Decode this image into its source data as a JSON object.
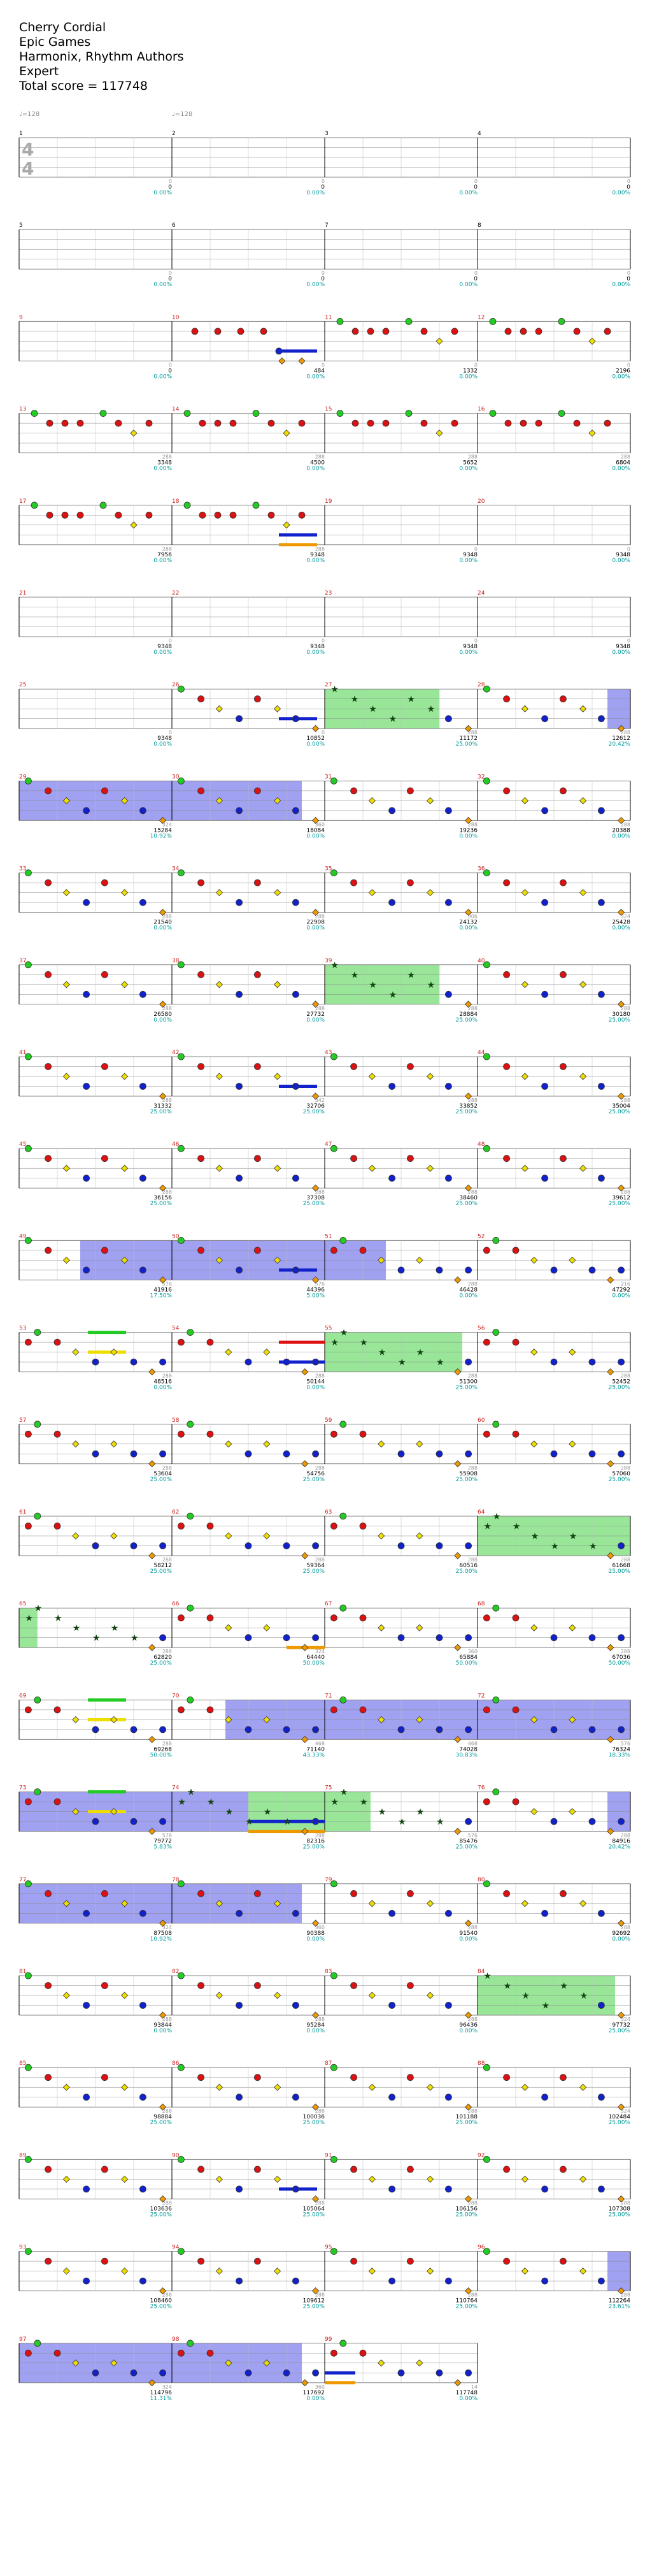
{
  "header": {
    "title": "Cherry Cordial",
    "artist": "Epic Games",
    "author": "Harmonix, Rhythm Authors",
    "difficulty": "Expert",
    "total_score_label": "Total score = 117748"
  },
  "time_signature": {
    "numerator": "4",
    "denominator": "4"
  },
  "tempo_markers": [
    {
      "measure": 1,
      "label": "♩=128"
    },
    {
      "measure": 2,
      "label": "♩=128"
    }
  ],
  "colors": {
    "green": "#22cc22",
    "red": "#dd1111",
    "yellow": "#eedd00",
    "blue": "#1122cc",
    "orange": "#ee9900",
    "overdrive": "#7fe07f",
    "solo": "#8a8aee",
    "measure_number": "#cc2222",
    "score": "#000000",
    "percent": "#009999",
    "streak": "#999999"
  },
  "chart_data": {
    "type": "table",
    "columns": [
      "measure",
      "score",
      "percent",
      "streak"
    ],
    "measures": [
      {
        "measure": 1,
        "score": "0",
        "percent": "0.00%",
        "streak": "0"
      },
      {
        "measure": 2,
        "score": "0",
        "percent": "0.00%",
        "streak": "0"
      },
      {
        "measure": 3,
        "score": "0",
        "percent": "0.00%",
        "streak": "0"
      },
      {
        "measure": 4,
        "score": "0",
        "percent": "0.00%",
        "streak": "0"
      },
      {
        "measure": 5,
        "score": "0",
        "percent": "0.00%",
        "streak": "0"
      },
      {
        "measure": 6,
        "score": "0",
        "percent": "0.00%",
        "streak": "0"
      },
      {
        "measure": 7,
        "score": "0",
        "percent": "0.00%",
        "streak": "0"
      },
      {
        "measure": 8,
        "score": "0",
        "percent": "0.00%",
        "streak": "0"
      },
      {
        "measure": 9,
        "score": "0",
        "percent": "0.00%",
        "streak": "0"
      },
      {
        "measure": 10,
        "score": "484",
        "percent": "0.00%",
        "streak": "0"
      },
      {
        "measure": 11,
        "score": "1332",
        "percent": "0.00%",
        "streak": "0"
      },
      {
        "measure": 12,
        "score": "2196",
        "percent": "0.00%",
        "streak": "0"
      },
      {
        "measure": 13,
        "score": "3348",
        "percent": "0.00%",
        "streak": "288"
      },
      {
        "measure": 14,
        "score": "4500",
        "percent": "0.00%",
        "streak": "288"
      },
      {
        "measure": 15,
        "score": "5652",
        "percent": "0.00%",
        "streak": "288"
      },
      {
        "measure": 16,
        "score": "6804",
        "percent": "0.00%",
        "streak": "288"
      },
      {
        "measure": 17,
        "score": "7956",
        "percent": "0.00%",
        "streak": "288"
      },
      {
        "measure": 18,
        "score": "9348",
        "percent": "0.00%",
        "streak": "288"
      },
      {
        "measure": 19,
        "score": "9348",
        "percent": "0.00%",
        "streak": "0"
      },
      {
        "measure": 20,
        "score": "9348",
        "percent": "0.00%",
        "streak": "0"
      },
      {
        "measure": 21,
        "score": "9348",
        "percent": "0.00%",
        "streak": "0"
      },
      {
        "measure": 22,
        "score": "9348",
        "percent": "0.00%",
        "streak": "0"
      },
      {
        "measure": 23,
        "score": "9348",
        "percent": "0.00%",
        "streak": "0"
      },
      {
        "measure": 24,
        "score": "9348",
        "percent": "0.00%",
        "streak": "0"
      },
      {
        "measure": 25,
        "score": "9348",
        "percent": "0.00%",
        "streak": "0"
      },
      {
        "measure": 26,
        "score": "10852",
        "percent": "0.00%",
        "streak": "0"
      },
      {
        "measure": 27,
        "score": "11172",
        "percent": "25.00%",
        "streak": "288"
      },
      {
        "measure": 28,
        "score": "12612",
        "percent": "20.42%",
        "streak": "288"
      },
      {
        "measure": 29,
        "score": "15284",
        "percent": "10.92%",
        "streak": "324"
      },
      {
        "measure": 30,
        "score": "18084",
        "percent": "0.00%",
        "streak": "360"
      },
      {
        "measure": 31,
        "score": "19236",
        "percent": "0.00%",
        "streak": "288"
      },
      {
        "measure": 32,
        "score": "20388",
        "percent": "0.00%",
        "streak": "288"
      },
      {
        "measure": 33,
        "score": "21540",
        "percent": "0.00%",
        "streak": "288"
      },
      {
        "measure": 34,
        "score": "22908",
        "percent": "0.00%",
        "streak": "288"
      },
      {
        "measure": 35,
        "score": "24132",
        "percent": "0.00%",
        "streak": "306"
      },
      {
        "measure": 36,
        "score": "25428",
        "percent": "0.00%",
        "streak": "324"
      },
      {
        "measure": 37,
        "score": "26580",
        "percent": "0.00%",
        "streak": "288"
      },
      {
        "measure": 38,
        "score": "27732",
        "percent": "0.00%",
        "streak": "288"
      },
      {
        "measure": 39,
        "score": "28884",
        "percent": "25.00%",
        "streak": "288"
      },
      {
        "measure": 40,
        "score": "30180",
        "percent": "25.00%",
        "streak": "288"
      },
      {
        "measure": 41,
        "score": "31332",
        "percent": "25.00%",
        "streak": "288"
      },
      {
        "measure": 42,
        "score": "32706",
        "percent": "25.00%",
        "streak": "342"
      },
      {
        "measure": 43,
        "score": "33852",
        "percent": "25.00%",
        "streak": "288"
      },
      {
        "measure": 44,
        "score": "35004",
        "percent": "25.00%",
        "streak": "288"
      },
      {
        "measure": 45,
        "score": "36156",
        "percent": "25.00%",
        "streak": "288"
      },
      {
        "measure": 46,
        "score": "37308",
        "percent": "25.00%",
        "streak": "288"
      },
      {
        "measure": 47,
        "score": "38460",
        "percent": "25.00%",
        "streak": "288"
      },
      {
        "measure": 48,
        "score": "39612",
        "percent": "25.00%",
        "streak": "288"
      },
      {
        "measure": 49,
        "score": "41916",
        "percent": "17.50%",
        "streak": "576"
      },
      {
        "measure": 50,
        "score": "44396",
        "percent": "5.00%",
        "streak": "576"
      },
      {
        "measure": 51,
        "score": "46428",
        "percent": "0.00%",
        "streak": "288"
      },
      {
        "measure": 52,
        "score": "47292",
        "percent": "0.00%",
        "streak": "216"
      },
      {
        "measure": 53,
        "score": "48516",
        "percent": "0.00%",
        "streak": "288"
      },
      {
        "measure": 54,
        "score": "50144",
        "percent": "0.00%",
        "streak": "288"
      },
      {
        "measure": 55,
        "score": "51300",
        "percent": "25.00%",
        "streak": "288"
      },
      {
        "measure": 56,
        "score": "52452",
        "percent": "25.00%",
        "streak": "288"
      },
      {
        "measure": 57,
        "score": "53604",
        "percent": "25.00%",
        "streak": "288"
      },
      {
        "measure": 58,
        "score": "54756",
        "percent": "25.00%",
        "streak": "288"
      },
      {
        "measure": 59,
        "score": "55908",
        "percent": "25.00%",
        "streak": "288"
      },
      {
        "measure": 60,
        "score": "57060",
        "percent": "25.00%",
        "streak": "288"
      },
      {
        "measure": 61,
        "score": "58212",
        "percent": "25.00%",
        "streak": "288"
      },
      {
        "measure": 62,
        "score": "59364",
        "percent": "25.00%",
        "streak": "288"
      },
      {
        "measure": 63,
        "score": "60516",
        "percent": "25.00%",
        "streak": "288"
      },
      {
        "measure": 64,
        "score": "61668",
        "percent": "25.00%",
        "streak": "288"
      },
      {
        "measure": 65,
        "score": "62820",
        "percent": "25.00%",
        "streak": "288"
      },
      {
        "measure": 66,
        "score": "64440",
        "percent": "50.00%",
        "streak": "324"
      },
      {
        "measure": 67,
        "score": "65884",
        "percent": "50.00%",
        "streak": "360"
      },
      {
        "measure": 68,
        "score": "67036",
        "percent": "50.00%",
        "streak": "288"
      },
      {
        "measure": 69,
        "score": "69268",
        "percent": "50.00%",
        "streak": "288"
      },
      {
        "measure": 70,
        "score": "71140",
        "percent": "43.33%",
        "streak": "468"
      },
      {
        "measure": 71,
        "score": "74028",
        "percent": "30.83%",
        "streak": "468"
      },
      {
        "measure": 72,
        "score": "76324",
        "percent": "18.33%",
        "streak": "576"
      },
      {
        "measure": 73,
        "score": "79772",
        "percent": "5.83%",
        "streak": "576"
      },
      {
        "measure": 74,
        "score": "82316",
        "percent": "25.00%",
        "streak": "288"
      },
      {
        "measure": 75,
        "score": "85476",
        "percent": "25.00%",
        "streak": "576"
      },
      {
        "measure": 76,
        "score": "84916",
        "percent": "20.42%",
        "streak": "288"
      },
      {
        "measure": 77,
        "score": "87508",
        "percent": "10.92%",
        "streak": "324"
      },
      {
        "measure": 78,
        "score": "90388",
        "percent": "0.00%",
        "streak": "360"
      },
      {
        "measure": 79,
        "score": "91540",
        "percent": "0.00%",
        "streak": "288"
      },
      {
        "measure": 80,
        "score": "92692",
        "percent": "0.00%",
        "streak": "288"
      },
      {
        "measure": 81,
        "score": "93844",
        "percent": "0.00%",
        "streak": "288"
      },
      {
        "measure": 82,
        "score": "95284",
        "percent": "0.00%",
        "streak": "288"
      },
      {
        "measure": 83,
        "score": "96436",
        "percent": "0.00%",
        "streak": "288"
      },
      {
        "measure": 84,
        "score": "97732",
        "percent": "25.00%",
        "streak": "324"
      },
      {
        "measure": 85,
        "score": "98884",
        "percent": "25.00%",
        "streak": "288"
      },
      {
        "measure": 86,
        "score": "100036",
        "percent": "25.00%",
        "streak": "288"
      },
      {
        "measure": 87,
        "score": "101188",
        "percent": "25.00%",
        "streak": "288"
      },
      {
        "measure": 88,
        "score": "102484",
        "percent": "25.00%",
        "streak": "324"
      },
      {
        "measure": 89,
        "score": "103636",
        "percent": "25.00%",
        "streak": "288"
      },
      {
        "measure": 90,
        "score": "105064",
        "percent": "25.00%",
        "streak": "288"
      },
      {
        "measure": 91,
        "score": "106156",
        "percent": "25.00%",
        "streak": "288"
      },
      {
        "measure": 92,
        "score": "107308",
        "percent": "25.00%",
        "streak": "288"
      },
      {
        "measure": 93,
        "score": "108460",
        "percent": "25.00%",
        "streak": "288"
      },
      {
        "measure": 94,
        "score": "109612",
        "percent": "25.00%",
        "streak": "288"
      },
      {
        "measure": 95,
        "score": "110764",
        "percent": "25.00%",
        "streak": "288"
      },
      {
        "measure": 96,
        "score": "112264",
        "percent": "23.61%",
        "streak": "288"
      },
      {
        "measure": 97,
        "score": "114796",
        "percent": "11.31%",
        "streak": "324"
      },
      {
        "measure": 98,
        "score": "117692",
        "percent": "0.00%",
        "streak": "360"
      },
      {
        "measure": 99,
        "score": "117748",
        "percent": "0.00%",
        "streak": "14"
      }
    ],
    "overdrive_phrases": [
      {
        "measure": 27,
        "start": 0.0,
        "end": 0.75
      },
      {
        "measure": 39,
        "start": 0.0,
        "end": 0.75
      },
      {
        "measure": 55,
        "start": 0.0,
        "end": 0.9
      },
      {
        "measure": 64,
        "start": 0.0,
        "end": 1.0
      },
      {
        "measure": 65,
        "start": 0.0,
        "end": 0.12
      },
      {
        "measure": 74,
        "start": 0.5,
        "end": 1.0
      },
      {
        "measure": 75,
        "start": 0.0,
        "end": 0.3
      },
      {
        "measure": 84,
        "start": 0.0,
        "end": 0.9
      }
    ],
    "overdrive_activations": [
      {
        "measure": 28,
        "start": 0.85,
        "end": 1.0
      },
      {
        "measure": 29,
        "start": 0.0,
        "end": 1.0
      },
      {
        "measure": 30,
        "start": 0.0,
        "end": 0.85
      },
      {
        "measure": 49,
        "start": 0.4,
        "end": 1.0
      },
      {
        "measure": 50,
        "start": 0.0,
        "end": 1.0
      },
      {
        "measure": 51,
        "start": 0.0,
        "end": 0.4
      },
      {
        "measure": 70,
        "start": 0.35,
        "end": 1.0
      },
      {
        "measure": 71,
        "start": 0.0,
        "end": 1.0
      },
      {
        "measure": 72,
        "start": 0.0,
        "end": 1.0
      },
      {
        "measure": 73,
        "start": 0.0,
        "end": 1.0
      },
      {
        "measure": 74,
        "start": 0.0,
        "end": 0.5
      },
      {
        "measure": 76,
        "start": 0.85,
        "end": 1.0
      },
      {
        "measure": 77,
        "start": 0.0,
        "end": 1.0
      },
      {
        "measure": 78,
        "start": 0.0,
        "end": 0.85
      },
      {
        "measure": 96,
        "start": 0.85,
        "end": 1.0
      },
      {
        "measure": 97,
        "start": 0.0,
        "end": 1.0
      },
      {
        "measure": 98,
        "start": 0.0,
        "end": 0.85
      }
    ],
    "sustains": [
      {
        "measure": 10,
        "lane": 3,
        "start": 0.7,
        "end": 0.95
      },
      {
        "measure": 18,
        "lane": 3,
        "start": 0.7,
        "end": 0.95
      },
      {
        "measure": 18,
        "lane": 4,
        "start": 0.7,
        "end": 0.95
      },
      {
        "measure": 26,
        "lane": 3,
        "start": 0.7,
        "end": 0.95
      },
      {
        "measure": 42,
        "lane": 3,
        "start": 0.7,
        "end": 0.95
      },
      {
        "measure": 50,
        "lane": 3,
        "start": 0.7,
        "end": 0.95
      },
      {
        "measure": 53,
        "lane": 0,
        "start": 0.45,
        "end": 0.7
      },
      {
        "measure": 53,
        "lane": 2,
        "start": 0.45,
        "end": 0.7
      },
      {
        "measure": 54,
        "lane": 1,
        "start": 0.7,
        "end": 1.0
      },
      {
        "measure": 54,
        "lane": 3,
        "start": 0.7,
        "end": 1.0
      },
      {
        "measure": 66,
        "lane": 4,
        "start": 0.75,
        "end": 1.0
      },
      {
        "measure": 69,
        "lane": 0,
        "start": 0.45,
        "end": 0.7
      },
      {
        "measure": 69,
        "lane": 2,
        "start": 0.45,
        "end": 0.7
      },
      {
        "measure": 73,
        "lane": 0,
        "start": 0.45,
        "end": 0.7
      },
      {
        "measure": 73,
        "lane": 2,
        "start": 0.45,
        "end": 0.7
      },
      {
        "measure": 74,
        "lane": 3,
        "start": 0.5,
        "end": 1.0
      },
      {
        "measure": 74,
        "lane": 4,
        "start": 0.5,
        "end": 1.0
      },
      {
        "measure": 90,
        "lane": 3,
        "start": 0.7,
        "end": 0.95
      },
      {
        "measure": 99,
        "lane": 3,
        "start": 0.0,
        "end": 0.2
      },
      {
        "measure": 99,
        "lane": 4,
        "start": 0.0,
        "end": 0.2
      }
    ]
  }
}
